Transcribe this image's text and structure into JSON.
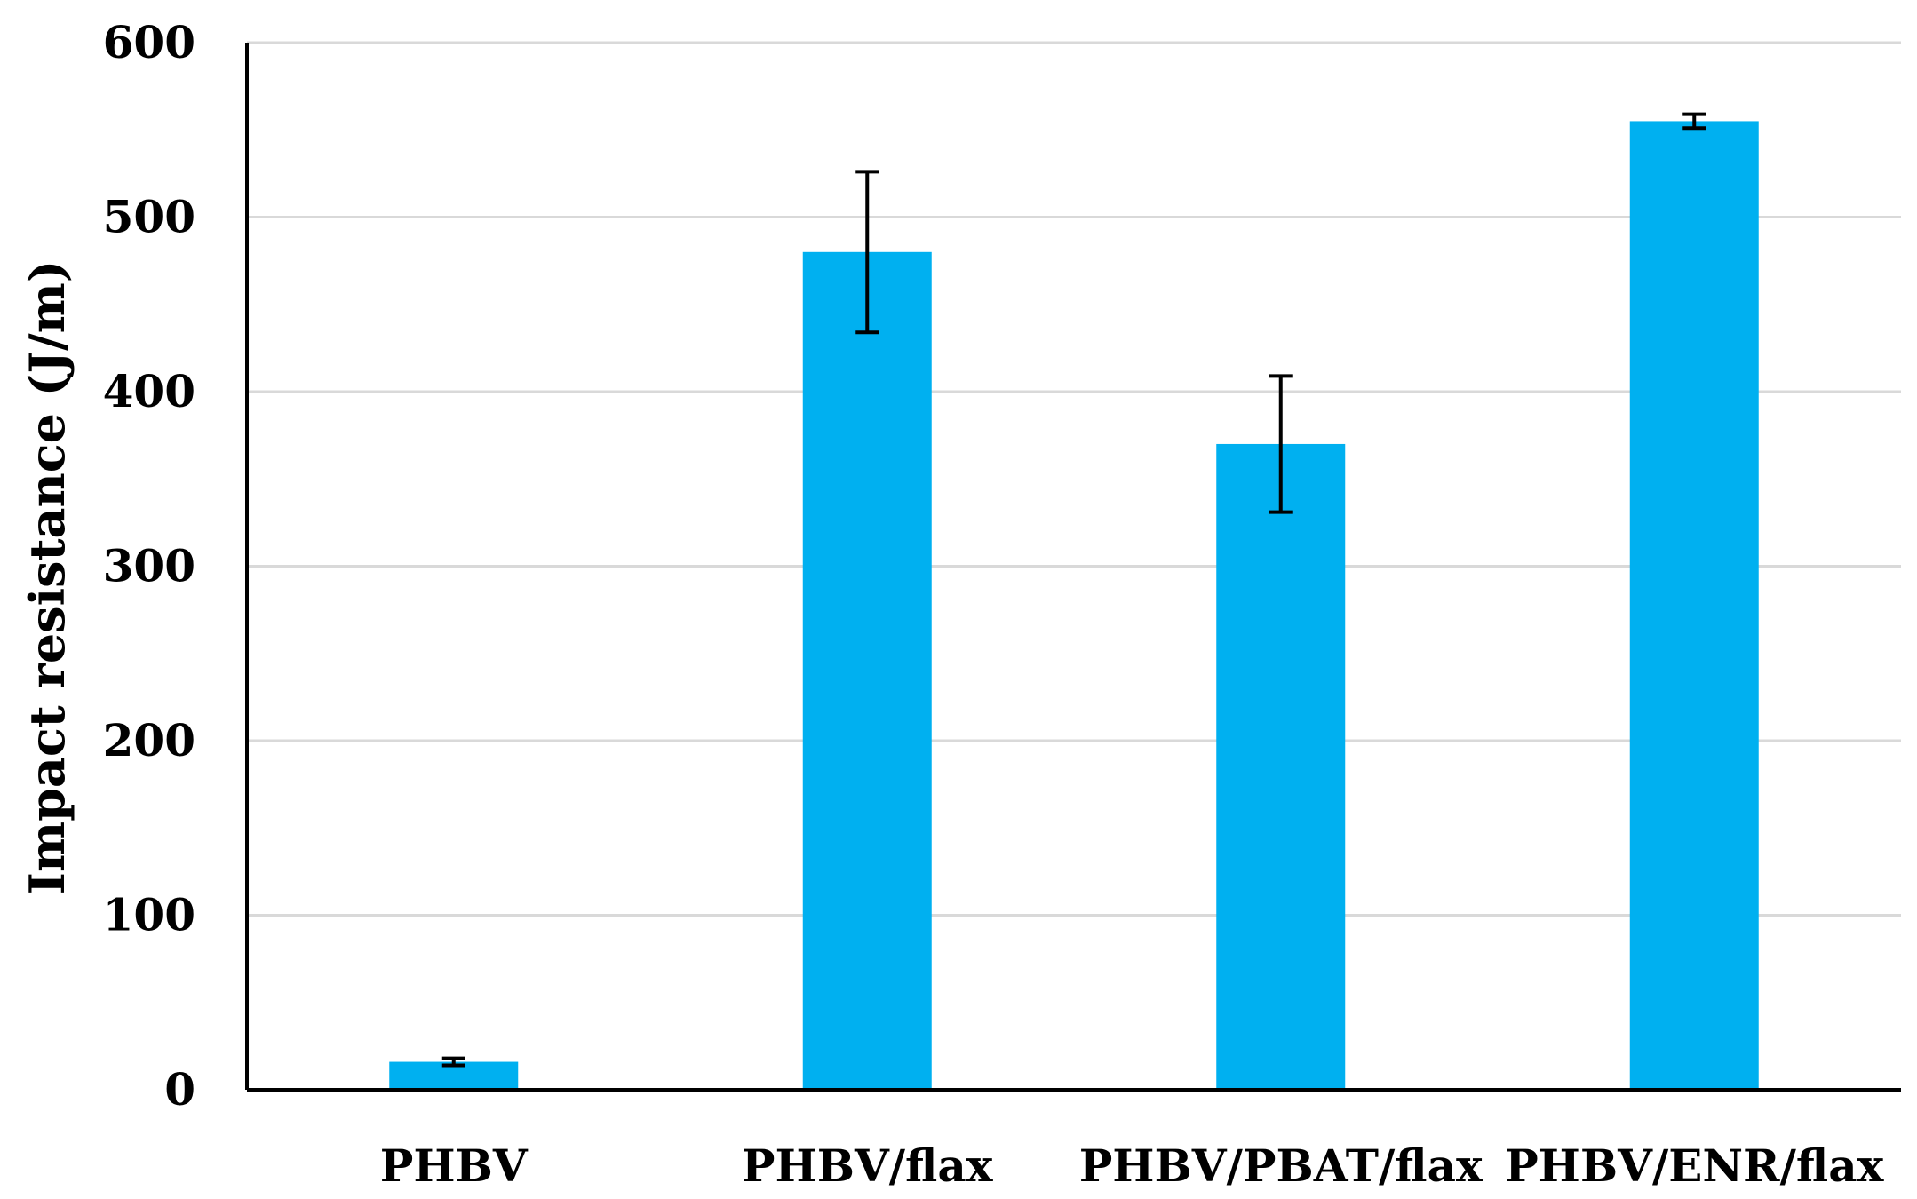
{
  "chart_data": {
    "type": "bar",
    "title": "",
    "xlabel": "",
    "ylabel": "Impact resistance (J/m)",
    "categories": [
      "PHBV",
      "PHBV/flax",
      "PHBV/PBAT/flax",
      "PHBV/ENR/flax"
    ],
    "values": [
      16,
      480,
      370,
      555
    ],
    "error_bars": [
      2,
      46,
      39,
      4
    ],
    "ylim": [
      0,
      600
    ],
    "yticks": [
      0,
      100,
      200,
      300,
      400,
      500,
      600
    ],
    "grid": "horizontal",
    "legend": "none",
    "bar_color": "#00b0f0",
    "grid_color": "#d9d9d9",
    "axis_color": "#000000",
    "error_bar_color": "#000000"
  }
}
